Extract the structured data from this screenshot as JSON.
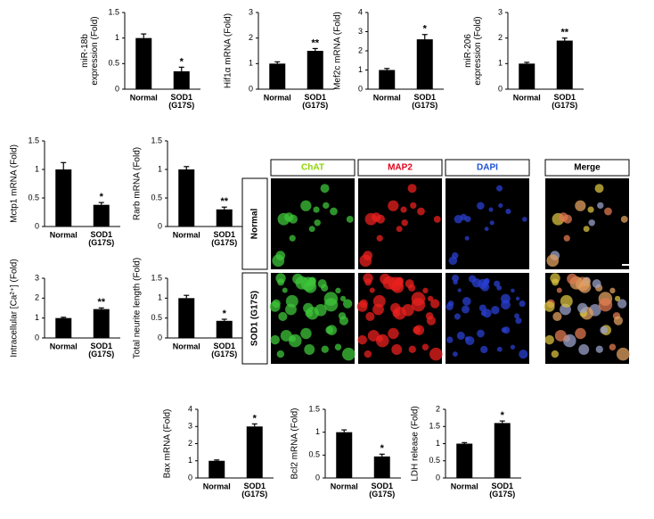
{
  "chart_data": [
    {
      "type": "bar",
      "ylabel": "miR-18b\nexpression (Fold)",
      "categories": [
        "Normal",
        "SOD1\n(G17S)"
      ],
      "values": [
        1.0,
        0.35
      ],
      "errors": [
        0.08,
        0.08
      ],
      "significance": [
        null,
        "*"
      ],
      "color": "#000000",
      "ylim": [
        0,
        1.5
      ],
      "yticks": [
        0,
        0.5,
        1,
        1.5
      ]
    },
    {
      "type": "bar",
      "ylabel": "Hif1α mRNA (Fold)",
      "categories": [
        "Normal",
        "SOD1\n(G17S)"
      ],
      "values": [
        1.0,
        1.5
      ],
      "errors": [
        0.07,
        0.09
      ],
      "significance": [
        null,
        "**"
      ],
      "color": "#000000",
      "ylim": [
        0,
        3
      ],
      "yticks": [
        0,
        1,
        2,
        3
      ]
    },
    {
      "type": "bar",
      "ylabel": "Mef2c mRNA (Fold)",
      "categories": [
        "Normal",
        "SOD1\n(G17S)"
      ],
      "values": [
        1.0,
        2.6
      ],
      "errors": [
        0.08,
        0.25
      ],
      "significance": [
        null,
        "*"
      ],
      "color": "#000000",
      "ylim": [
        0,
        4
      ],
      "yticks": [
        0,
        1,
        2,
        3,
        4
      ]
    },
    {
      "type": "bar",
      "ylabel": "miR-206\nexpression (Fold)",
      "categories": [
        "Normal",
        "SOD1\n(G17S)"
      ],
      "values": [
        1.0,
        1.9
      ],
      "errors": [
        0.05,
        0.1
      ],
      "significance": [
        null,
        "**"
      ],
      "color": "#000000",
      "ylim": [
        0,
        3
      ],
      "yticks": [
        0,
        1,
        2,
        3
      ]
    },
    {
      "type": "bar",
      "ylabel": "Mctp1 mRNA (Fold)",
      "categories": [
        "Normal",
        "SOD1\n(G17S)"
      ],
      "values": [
        1.0,
        0.38
      ],
      "errors": [
        0.12,
        0.04
      ],
      "significance": [
        null,
        "*"
      ],
      "color": "#000000",
      "ylim": [
        0,
        1.5
      ],
      "yticks": [
        0,
        0.5,
        1,
        1.5
      ]
    },
    {
      "type": "bar",
      "ylabel": "Rarb mRNA (Fold)",
      "categories": [
        "Normal",
        "SOD1\n(G17S)"
      ],
      "values": [
        1.0,
        0.3
      ],
      "errors": [
        0.05,
        0.04
      ],
      "significance": [
        null,
        "**"
      ],
      "color": "#000000",
      "ylim": [
        0,
        1.5
      ],
      "yticks": [
        0,
        0.5,
        1,
        1.5
      ]
    },
    {
      "type": "bar",
      "ylabel": "Intracellular [Ca²⁺] (Fold)",
      "categories": [
        "Normal",
        "SOD1\n(G17S)"
      ],
      "values": [
        1.0,
        1.45
      ],
      "errors": [
        0.04,
        0.06
      ],
      "significance": [
        null,
        "**"
      ],
      "color": "#000000",
      "ylim": [
        0,
        3
      ],
      "yticks": [
        0,
        1,
        2,
        3
      ]
    },
    {
      "type": "bar",
      "ylabel": "Total neurite length (Fold)",
      "categories": [
        "Normal",
        "SOD1\n(G17S)"
      ],
      "values": [
        1.0,
        0.43
      ],
      "errors": [
        0.07,
        0.04
      ],
      "significance": [
        null,
        "*"
      ],
      "color": "#000000",
      "ylim": [
        0,
        1.5
      ],
      "yticks": [
        0,
        0.5,
        1,
        1.5
      ]
    },
    {
      "type": "bar",
      "ylabel": "Bax mRNA (Fold)",
      "categories": [
        "Normal",
        "SOD1\n(G17S)"
      ],
      "values": [
        1.0,
        3.0
      ],
      "errors": [
        0.05,
        0.15
      ],
      "significance": [
        null,
        "*"
      ],
      "color": "#000000",
      "ylim": [
        0,
        4
      ],
      "yticks": [
        0,
        1,
        2,
        3,
        4
      ]
    },
    {
      "type": "bar",
      "ylabel": "Bcl2 mRNA (Fold)",
      "categories": [
        "Normal",
        "SOD1\n(G17S)"
      ],
      "values": [
        1.0,
        0.47
      ],
      "errors": [
        0.05,
        0.05
      ],
      "significance": [
        null,
        "*"
      ],
      "color": "#000000",
      "ylim": [
        0,
        1.5
      ],
      "yticks": [
        0,
        0.5,
        1,
        1.5
      ]
    },
    {
      "type": "bar",
      "ylabel": "LDH release (Fold)",
      "categories": [
        "Normal",
        "SOD1\n(G17S)"
      ],
      "values": [
        1.0,
        1.6
      ],
      "errors": [
        0.03,
        0.06
      ],
      "significance": [
        null,
        "*"
      ],
      "color": "#000000",
      "ylim": [
        0,
        2
      ],
      "yticks": [
        0,
        0.5,
        1,
        1.5,
        2
      ]
    }
  ],
  "image_panel": {
    "columns": [
      {
        "label": "ChAT",
        "color": "#8fd400"
      },
      {
        "label": "MAP2",
        "color": "#e0001a"
      },
      {
        "label": "DAPI",
        "color": "#1a4fd6"
      },
      {
        "label": "Merge",
        "color": "#000000"
      }
    ],
    "rows": [
      "Normal",
      "SOD1 (G17S)"
    ]
  }
}
